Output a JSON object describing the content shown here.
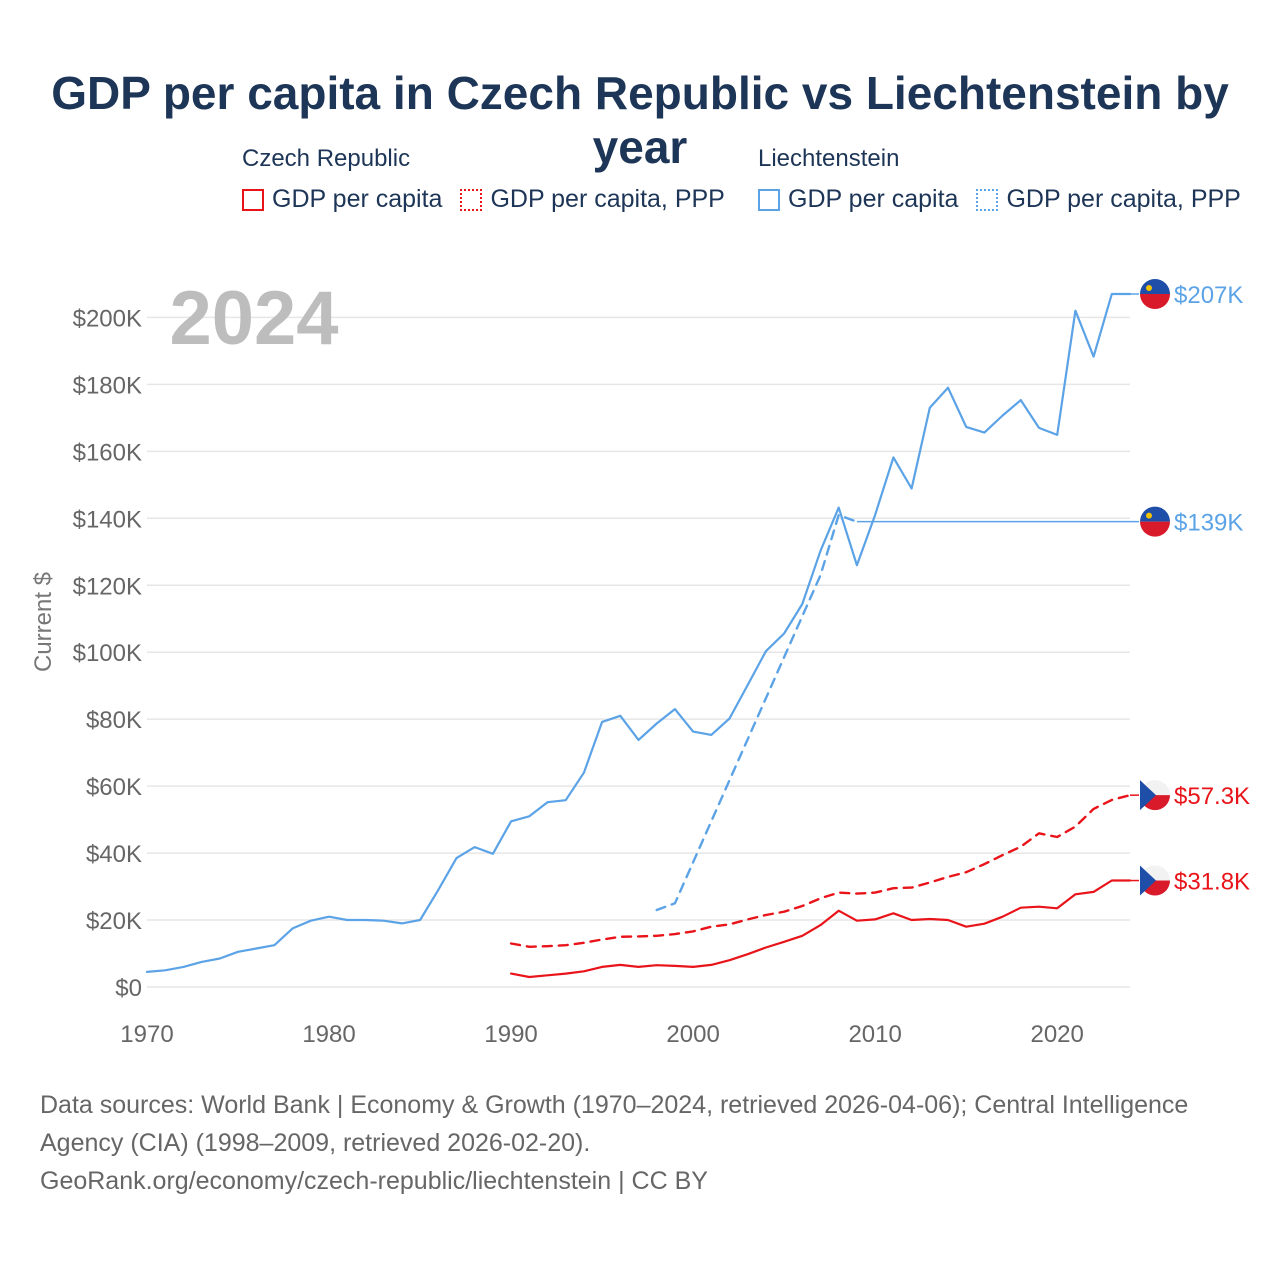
{
  "page": {
    "title": "GDP per capita in Czech Republic vs Liechtenstein by year",
    "footer_sources": "Data sources: World Bank | Economy & Growth (1970–2024, retrieved 2026-04-06); Central Intelligence Agency (CIA) (1998–2009, retrieved 2026-02-20).",
    "footer_link": "GeoRank.org/economy/czech-republic/liechtenstein | CC BY"
  },
  "legend": {
    "groups": [
      {
        "name": "Czech Republic",
        "color": "#e8141a",
        "items": [
          {
            "label": "GDP per capita",
            "style": "solid"
          },
          {
            "label": "GDP per capita, PPP",
            "style": "dotted"
          }
        ]
      },
      {
        "name": "Liechtenstein",
        "color": "#5ba3e6",
        "items": [
          {
            "label": "GDP per capita",
            "style": "solid"
          },
          {
            "label": "GDP per capita, PPP",
            "style": "dotted"
          }
        ]
      }
    ]
  },
  "chart_data": {
    "type": "line",
    "year_label": "2024",
    "ylabel": "Current $",
    "xlabel": "",
    "xlim": [
      1970,
      2024
    ],
    "ylim": [
      0,
      207000
    ],
    "x_ticks": [
      1970,
      1980,
      1990,
      2000,
      2010,
      2020
    ],
    "x_tick_labels": [
      "1970",
      "1980",
      "1990",
      "2000",
      "2010",
      "2020"
    ],
    "y_ticks": [
      0,
      20000,
      40000,
      60000,
      80000,
      100000,
      120000,
      140000,
      160000,
      180000,
      200000
    ],
    "y_tick_labels": [
      "$0",
      "$20K",
      "$40K",
      "$60K",
      "$80K",
      "$100K",
      "$120K",
      "$140K",
      "$160K",
      "$180K",
      "$200K"
    ],
    "series": [
      {
        "name": "Liechtenstein GDP per capita",
        "country": "Liechtenstein",
        "style": "solid",
        "color": "#5ba3e6",
        "end_label": "$207K",
        "end_value": 207000,
        "x": [
          1970,
          1971,
          1972,
          1973,
          1974,
          1975,
          1976,
          1977,
          1978,
          1979,
          1980,
          1981,
          1982,
          1983,
          1984,
          1985,
          1986,
          1987,
          1988,
          1989,
          1990,
          1991,
          1992,
          1993,
          1994,
          1995,
          1996,
          1997,
          1998,
          1999,
          2000,
          2001,
          2002,
          2003,
          2004,
          2005,
          2006,
          2007,
          2008,
          2009,
          2010,
          2011,
          2012,
          2013,
          2014,
          2015,
          2016,
          2017,
          2018,
          2019,
          2020,
          2021,
          2022,
          2023,
          2024
        ],
        "y": [
          4500,
          5000,
          6000,
          7500,
          8500,
          10500,
          11500,
          12500,
          17500,
          19800,
          21000,
          20000,
          20000,
          19800,
          19000,
          20000,
          29000,
          38500,
          41800,
          39800,
          49500,
          51000,
          55200,
          55800,
          64000,
          79200,
          81000,
          73800,
          78700,
          83000,
          76300,
          75300,
          80200,
          90200,
          100300,
          105600,
          114400,
          130300,
          143200,
          126000,
          141000,
          158200,
          148900,
          173000,
          179000,
          167300,
          165600,
          170700,
          175300,
          167000,
          164900,
          202000,
          188300,
          207000,
          207000
        ]
      },
      {
        "name": "Liechtenstein GDP per capita, PPP",
        "country": "Liechtenstein",
        "style": "dashed",
        "color": "#5ba3e6",
        "end_label": "$139K",
        "end_value": 139000,
        "x": [
          1998,
          1999,
          2007,
          2008,
          2009
        ],
        "y": [
          23000,
          25000,
          123000,
          141000,
          139000
        ]
      },
      {
        "name": "Czech Republic GDP per capita, PPP",
        "country": "Czech Republic",
        "style": "dashed",
        "color": "#e8141a",
        "end_label": "$57.3K",
        "end_value": 57300,
        "x": [
          1990,
          1991,
          1992,
          1993,
          1994,
          1995,
          1996,
          1997,
          1998,
          1999,
          2000,
          2001,
          2002,
          2003,
          2004,
          2005,
          2006,
          2007,
          2008,
          2009,
          2010,
          2011,
          2012,
          2013,
          2014,
          2015,
          2016,
          2017,
          2018,
          2019,
          2020,
          2021,
          2022,
          2023,
          2024
        ],
        "y": [
          13000,
          12000,
          12200,
          12500,
          13200,
          14200,
          15000,
          15100,
          15300,
          15800,
          16600,
          18000,
          18700,
          20200,
          21500,
          22500,
          24200,
          26500,
          28200,
          27900,
          28200,
          29500,
          29700,
          31200,
          32900,
          34300,
          36700,
          39400,
          41900,
          45900,
          44800,
          47900,
          53200,
          55900,
          57300
        ]
      },
      {
        "name": "Czech Republic GDP per capita",
        "country": "Czech Republic",
        "style": "solid",
        "color": "#e8141a",
        "end_label": "$31.8K",
        "end_value": 31800,
        "x": [
          1990,
          1991,
          1992,
          1993,
          1994,
          1995,
          1996,
          1997,
          1998,
          1999,
          2000,
          2001,
          2002,
          2003,
          2004,
          2005,
          2006,
          2007,
          2008,
          2009,
          2010,
          2011,
          2012,
          2013,
          2014,
          2015,
          2016,
          2017,
          2018,
          2019,
          2020,
          2021,
          2022,
          2023,
          2024
        ],
        "y": [
          4000,
          3000,
          3500,
          4000,
          4700,
          6000,
          6600,
          6000,
          6500,
          6300,
          6000,
          6600,
          8000,
          9800,
          11800,
          13500,
          15300,
          18500,
          22800,
          19800,
          20200,
          22000,
          20000,
          20300,
          20000,
          18000,
          18900,
          21000,
          23700,
          24000,
          23500,
          27700,
          28400,
          31800,
          31800
        ]
      }
    ]
  }
}
